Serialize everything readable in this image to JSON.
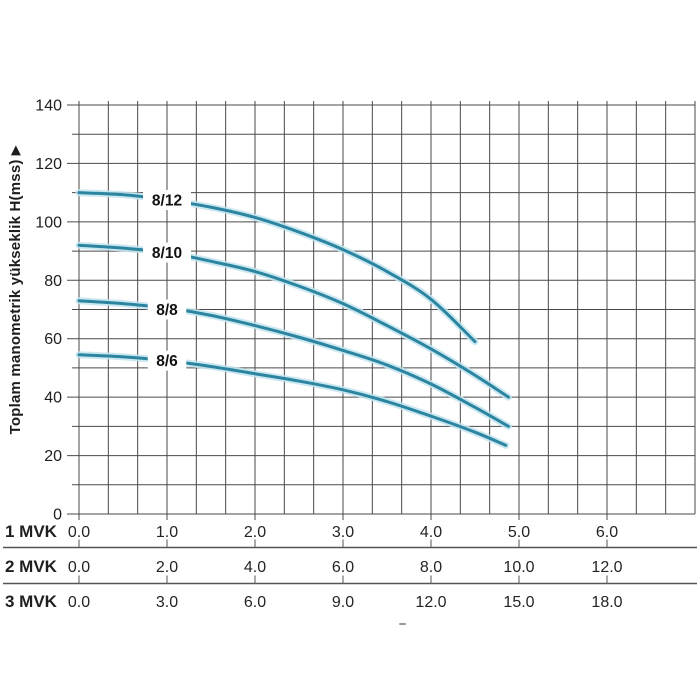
{
  "chart_data": {
    "type": "line",
    "title": "",
    "ylabel": "Toplam manometrik yükseklik H(mss)",
    "ylabel_arrow": "▶",
    "ylim": [
      0,
      140
    ],
    "y_label_step": 20,
    "y_grid_step": 10,
    "xlim": [
      0,
      7
    ],
    "x_label_values": [
      0,
      1,
      2,
      3,
      4,
      5,
      6
    ],
    "x_minor_per_major": 3,
    "grid": true,
    "legend_position": "on-curve-labels",
    "series": [
      {
        "name": "8/12",
        "label_at": {
          "q": 1.0,
          "h": 107.5
        },
        "points": [
          [
            0,
            110
          ],
          [
            0.5,
            109.3
          ],
          [
            1,
            107.5
          ],
          [
            1.5,
            105
          ],
          [
            2,
            101.5
          ],
          [
            2.5,
            96.5
          ],
          [
            3,
            90.5
          ],
          [
            3.5,
            83
          ],
          [
            4,
            73.5
          ],
          [
            4.5,
            59
          ]
        ]
      },
      {
        "name": "8/10",
        "label_at": {
          "q": 1.0,
          "h": 89.5
        },
        "points": [
          [
            0,
            92
          ],
          [
            0.5,
            91
          ],
          [
            1,
            89.5
          ],
          [
            1.5,
            86.5
          ],
          [
            2,
            83
          ],
          [
            2.5,
            78
          ],
          [
            3,
            72
          ],
          [
            3.5,
            64.5
          ],
          [
            4,
            56.5
          ],
          [
            4.5,
            47.5
          ],
          [
            4.88,
            40
          ]
        ]
      },
      {
        "name": "8/8",
        "label_at": {
          "q": 1.0,
          "h": 70
        },
        "points": [
          [
            0,
            73
          ],
          [
            0.5,
            72
          ],
          [
            1,
            70.5
          ],
          [
            1.5,
            68
          ],
          [
            2,
            64.5
          ],
          [
            2.5,
            60.5
          ],
          [
            3,
            56
          ],
          [
            3.5,
            51
          ],
          [
            4,
            44.5
          ],
          [
            4.5,
            36.5
          ],
          [
            4.88,
            30
          ]
        ]
      },
      {
        "name": "8/6",
        "label_at": {
          "q": 1.0,
          "h": 52.5
        },
        "points": [
          [
            0,
            54.5
          ],
          [
            0.5,
            53.8
          ],
          [
            1,
            52.5
          ],
          [
            1.5,
            50.5
          ],
          [
            2,
            48
          ],
          [
            2.5,
            45.5
          ],
          [
            3,
            42.5
          ],
          [
            3.5,
            38.5
          ],
          [
            4,
            33.5
          ],
          [
            4.5,
            28
          ],
          [
            4.85,
            23.5
          ]
        ]
      }
    ],
    "x_axes": [
      {
        "label": "1 MVK",
        "values": [
          "0.0",
          "1.0",
          "2.0",
          "3.0",
          "4.0",
          "5.0",
          "6.0"
        ]
      },
      {
        "label": "2 MVK",
        "values": [
          "0.0",
          "2.0",
          "4.0",
          "6.0",
          "8.0",
          "10.0",
          "12.0"
        ]
      },
      {
        "label": "3 MVK",
        "values": [
          "0.0",
          "3.0",
          "6.0",
          "9.0",
          "12.0",
          "15.0",
          "18.0"
        ]
      }
    ],
    "colors": {
      "curve": "#2b84a0",
      "curve_halo": "#c2e4ee",
      "grid": "#4a4a4a",
      "text": "#1f1f1f",
      "background": "#ffffff"
    }
  }
}
